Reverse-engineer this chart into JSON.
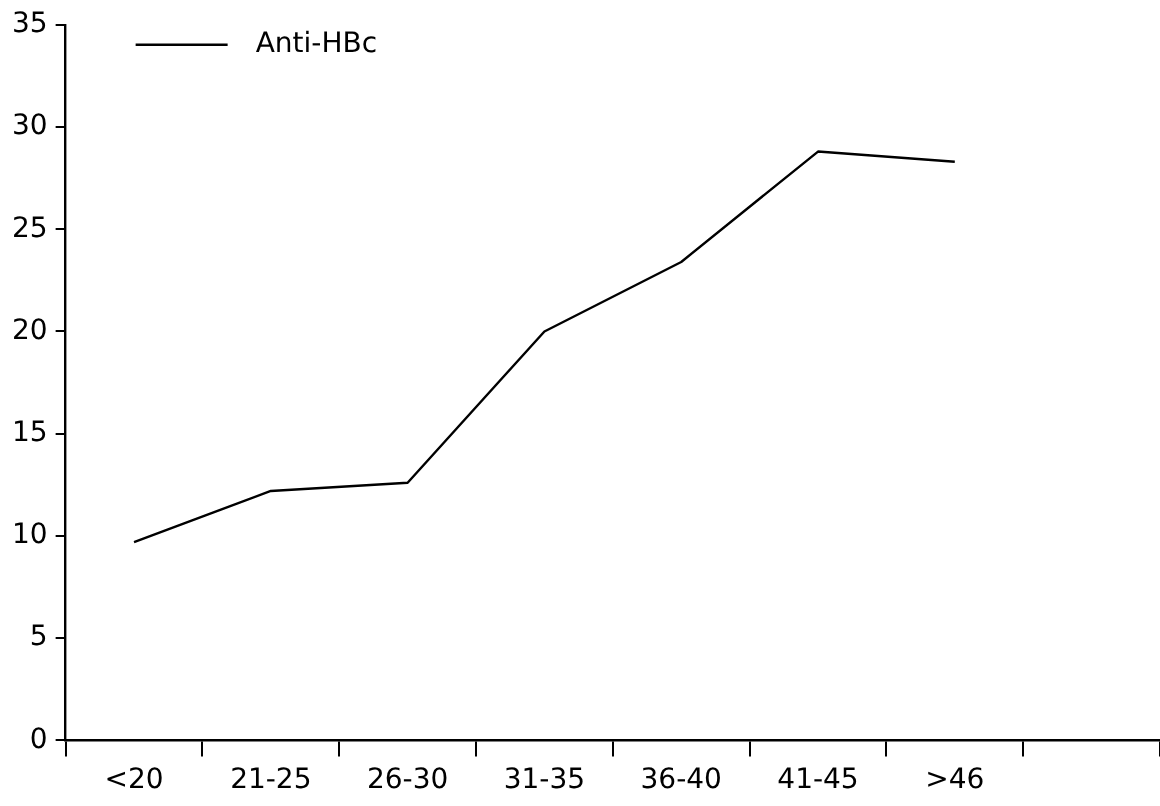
{
  "chart_data": {
    "type": "line",
    "categories": [
      "<20",
      "21-25",
      "26-30",
      "31-35",
      "36-40",
      "41-45",
      ">46",
      null
    ],
    "series": [
      {
        "name": "Anti-HBc",
        "color": "#000000",
        "values": [
          9.7,
          12.2,
          12.6,
          20.0,
          23.4,
          28.8,
          28.3,
          null
        ]
      }
    ],
    "ylim": [
      0,
      35
    ],
    "yticks": [
      0,
      5,
      10,
      15,
      20,
      25,
      30,
      35
    ],
    "grid": false,
    "legend": "top left",
    "marker": "none",
    "line_style": "solid"
  }
}
